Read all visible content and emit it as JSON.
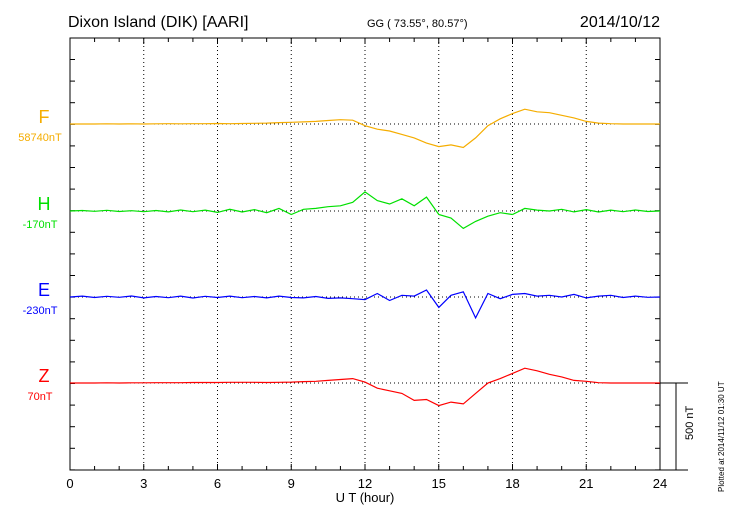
{
  "header": {
    "station": "Dixon Island (DIK)  [AARI]",
    "coords": "GG ( 73.55°,  80.57°)",
    "date": "2014/10/12"
  },
  "footer": {
    "plotted": "Plotted at 2014/11/12 01:30 UT",
    "scale_label": "500 nT"
  },
  "chart_data": {
    "type": "line",
    "title": "Dixon Island (DIK)  [AARI]",
    "xlabel": "U T (hour)",
    "ylabel": "",
    "xlim": [
      0,
      24
    ],
    "xticks": [
      "0",
      "3",
      "6",
      "9",
      "12",
      "15",
      "18",
      "21",
      "24"
    ],
    "grid": true,
    "scale_bar_nT": 500,
    "x": [
      0,
      0.5,
      1,
      1.5,
      2,
      2.5,
      3,
      3.5,
      4,
      4.5,
      5,
      5.5,
      6,
      6.5,
      7,
      7.5,
      8,
      8.5,
      9,
      9.5,
      10,
      10.5,
      11,
      11.5,
      12,
      12.5,
      13,
      13.5,
      14,
      14.5,
      15,
      15.5,
      16,
      16.5,
      17,
      17.5,
      18,
      18.5,
      19,
      19.5,
      20,
      20.5,
      21,
      21.5,
      22,
      22.5,
      23,
      23.5,
      24
    ],
    "series": [
      {
        "name": "F",
        "baseline_label": "58740nT",
        "color": "#f5ad00",
        "values": [
          0,
          0,
          0,
          1,
          0,
          1,
          0,
          1,
          2,
          1,
          2,
          2,
          3,
          2,
          3,
          4,
          5,
          8,
          10,
          12,
          15,
          20,
          25,
          22,
          -10,
          -30,
          -40,
          -60,
          -80,
          -110,
          -130,
          -120,
          -135,
          -80,
          -10,
          30,
          60,
          85,
          70,
          65,
          50,
          35,
          15,
          5,
          2,
          0,
          0,
          0,
          0
        ]
      },
      {
        "name": "H",
        "baseline_label": "-170nT",
        "color": "#00e000",
        "values": [
          0,
          3,
          -2,
          4,
          -3,
          2,
          -4,
          3,
          -5,
          6,
          -4,
          5,
          -8,
          10,
          -6,
          8,
          -10,
          15,
          -20,
          10,
          15,
          25,
          30,
          50,
          110,
          60,
          40,
          70,
          30,
          80,
          -20,
          -40,
          -100,
          -60,
          -30,
          -10,
          -20,
          15,
          5,
          0,
          10,
          -5,
          8,
          -6,
          5,
          -4,
          6,
          -3,
          0
        ]
      },
      {
        "name": "E",
        "baseline_label": "-230nT",
        "color": "#0000ff",
        "values": [
          0,
          5,
          -3,
          4,
          -2,
          6,
          -5,
          3,
          -4,
          5,
          -6,
          4,
          -3,
          5,
          -4,
          3,
          -5,
          5,
          -3,
          -5,
          3,
          -8,
          -5,
          -10,
          -15,
          20,
          -20,
          10,
          5,
          40,
          -60,
          10,
          30,
          -120,
          20,
          -10,
          15,
          20,
          5,
          10,
          0,
          15,
          -5,
          5,
          10,
          -3,
          5,
          -2,
          0
        ]
      },
      {
        "name": "Z",
        "baseline_label": "70nT",
        "color": "#ff0000",
        "values": [
          0,
          0,
          0,
          1,
          0,
          1,
          1,
          2,
          2,
          2,
          3,
          3,
          3,
          4,
          4,
          4,
          3,
          4,
          5,
          8,
          10,
          15,
          20,
          25,
          5,
          -30,
          -45,
          -60,
          -100,
          -95,
          -130,
          -110,
          -120,
          -60,
          0,
          25,
          55,
          85,
          70,
          50,
          35,
          15,
          10,
          2,
          0,
          0,
          0,
          0,
          0
        ]
      }
    ]
  }
}
